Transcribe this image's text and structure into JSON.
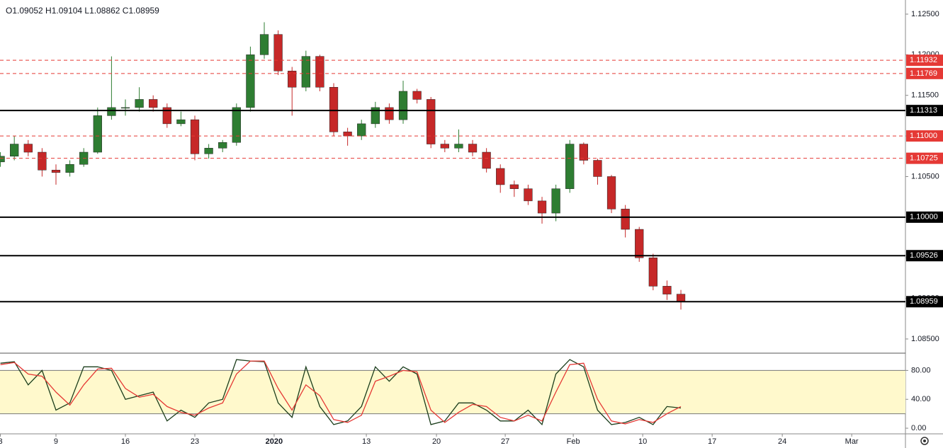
{
  "chart_data": [
    {
      "type": "candlestick",
      "header": "O1.09052  H1.09104  L1.08862  C1.08959",
      "x": [
        1,
        2,
        3,
        4,
        5,
        6,
        7,
        8,
        9,
        10,
        11,
        12,
        13,
        14,
        15,
        16,
        17,
        18,
        19,
        20,
        21,
        22,
        23,
        24,
        25,
        26,
        27,
        28,
        29,
        30,
        31,
        32,
        33,
        34,
        35,
        36,
        37,
        38,
        39,
        40,
        41,
        42,
        43,
        44,
        45,
        46,
        47,
        48,
        49,
        50
      ],
      "open": [
        1.1068,
        1.1075,
        1.109,
        1.108,
        1.1058,
        1.1055,
        1.1065,
        1.108,
        1.1125,
        1.1135,
        1.1135,
        1.1145,
        1.1135,
        1.1115,
        1.112,
        1.1078,
        1.1085,
        1.1092,
        1.1135,
        1.12,
        1.1225,
        1.118,
        1.116,
        1.1198,
        1.116,
        1.1105,
        1.11,
        1.1115,
        1.1135,
        1.112,
        1.1155,
        1.1145,
        1.109,
        1.1085,
        1.109,
        1.108,
        1.106,
        1.104,
        1.1035,
        1.102,
        1.1005,
        1.1035,
        1.109,
        1.107,
        1.105,
        1.101,
        1.0985,
        1.095,
        1.0915,
        1.09052
      ],
      "high": [
        1.108,
        1.11,
        1.1095,
        1.1085,
        1.1065,
        1.107,
        1.1085,
        1.1135,
        1.1198,
        1.1145,
        1.116,
        1.115,
        1.114,
        1.113,
        1.1125,
        1.109,
        1.1095,
        1.114,
        1.121,
        1.124,
        1.123,
        1.1185,
        1.1205,
        1.12,
        1.1165,
        1.111,
        1.112,
        1.1142,
        1.114,
        1.1168,
        1.1158,
        1.1148,
        1.1095,
        1.1108,
        1.1095,
        1.1085,
        1.1065,
        1.1045,
        1.104,
        1.1025,
        1.104,
        1.1095,
        1.1092,
        1.1072,
        1.1052,
        1.1015,
        1.0988,
        1.0955,
        1.0922,
        1.09104
      ],
      "low": [
        1.1062,
        1.107,
        1.1075,
        1.105,
        1.104,
        1.105,
        1.1062,
        1.1078,
        1.112,
        1.1125,
        1.113,
        1.113,
        1.111,
        1.1112,
        1.107,
        1.1072,
        1.108,
        1.1088,
        1.113,
        1.1195,
        1.1175,
        1.1125,
        1.1155,
        1.1155,
        1.11,
        1.1088,
        1.1095,
        1.111,
        1.1115,
        1.1115,
        1.114,
        1.1085,
        1.108,
        1.108,
        1.1075,
        1.1055,
        1.103,
        1.1025,
        1.1015,
        1.0992,
        1.0995,
        1.103,
        1.1065,
        1.104,
        1.1005,
        1.0975,
        1.0945,
        1.091,
        1.0898,
        1.08862
      ],
      "close": [
        1.1075,
        1.109,
        1.108,
        1.1058,
        1.1055,
        1.1065,
        1.108,
        1.1125,
        1.1135,
        1.1135,
        1.1145,
        1.1135,
        1.1115,
        1.112,
        1.1078,
        1.1085,
        1.1092,
        1.1135,
        1.12,
        1.1225,
        1.118,
        1.116,
        1.1198,
        1.116,
        1.1105,
        1.11,
        1.1115,
        1.1135,
        1.112,
        1.1155,
        1.1145,
        1.109,
        1.1085,
        1.109,
        1.108,
        1.106,
        1.104,
        1.1035,
        1.102,
        1.1005,
        1.1035,
        1.109,
        1.107,
        1.105,
        1.101,
        1.0985,
        1.095,
        1.0915,
        1.09052,
        1.08959
      ],
      "up_color": "#2e7d32",
      "down_color": "#c62828",
      "xlim": [
        0.97,
        66.17
      ],
      "xticks": [
        {
          "value": 1,
          "label": "3"
        },
        {
          "value": 5,
          "label": "9"
        },
        {
          "value": 10,
          "label": "16"
        },
        {
          "value": 15,
          "label": "23"
        },
        {
          "value": 20.71,
          "label": "2020"
        },
        {
          "value": 27.35,
          "label": "13"
        },
        {
          "value": 32.4,
          "label": "20"
        },
        {
          "value": 37.35,
          "label": "27"
        },
        {
          "value": 42.25,
          "label": "Feb"
        },
        {
          "value": 47.25,
          "label": "10"
        },
        {
          "value": 52.25,
          "label": "17"
        },
        {
          "value": 57.3,
          "label": "24"
        },
        {
          "value": 62.3,
          "label": "Mar"
        }
      ],
      "ylim": [
        1.08334,
        1.12674
      ],
      "yticks": [
        {
          "value": 1.125,
          "label": "1.12500"
        },
        {
          "value": 1.12,
          "label": "1.12000"
        },
        {
          "value": 1.115,
          "label": "1.11500"
        },
        {
          "value": 1.11,
          "label": "1.11000"
        },
        {
          "value": 1.105,
          "label": "1.10500"
        },
        {
          "value": 1.1,
          "label": "1.10000"
        },
        {
          "value": 1.095,
          "label": "1.09500"
        },
        {
          "value": 1.09,
          "label": "1.09000"
        },
        {
          "value": 1.085,
          "label": "1.08500"
        }
      ],
      "levels": [
        {
          "value": 1.11932,
          "label": "1.11932",
          "style": "dashed",
          "color": "#e53935"
        },
        {
          "value": 1.11769,
          "label": "1.11769",
          "style": "dashed",
          "color": "#e53935"
        },
        {
          "value": 1.11313,
          "label": "1.11313",
          "style": "solid",
          "color": "#000000"
        },
        {
          "value": 1.11,
          "label": "1.11000",
          "style": "dashed",
          "color": "#e53935"
        },
        {
          "value": 1.10725,
          "label": "1.10725",
          "style": "dashed",
          "color": "#e53935"
        },
        {
          "value": 1.1,
          "label": "1.10000",
          "style": "solid",
          "color": "#000000"
        },
        {
          "value": 1.09526,
          "label": "1.09526",
          "style": "solid",
          "color": "#000000"
        },
        {
          "value": 1.08959,
          "label": "1.08959",
          "style": "solid",
          "color": "#000000"
        }
      ]
    },
    {
      "type": "line",
      "x": [
        1,
        2,
        3,
        4,
        5,
        6,
        7,
        8,
        9,
        10,
        11,
        12,
        13,
        14,
        15,
        16,
        17,
        18,
        19,
        20,
        21,
        22,
        23,
        24,
        25,
        26,
        27,
        28,
        29,
        30,
        31,
        32,
        33,
        34,
        35,
        36,
        37,
        38,
        39,
        40,
        41,
        42,
        43,
        44,
        45,
        46,
        47,
        48,
        49,
        50
      ],
      "series": [
        {
          "color": "#1b3d1b",
          "values": [
            90,
            92,
            60,
            80,
            25,
            35,
            85,
            85,
            80,
            40,
            45,
            50,
            10,
            25,
            15,
            35,
            40,
            95,
            93,
            92,
            35,
            15,
            85,
            30,
            5,
            10,
            30,
            85,
            65,
            85,
            75,
            5,
            10,
            35,
            35,
            25,
            10,
            10,
            25,
            5,
            75,
            95,
            85,
            25,
            5,
            8,
            15,
            5,
            30,
            28
          ]
        },
        {
          "color": "#e53935",
          "values": [
            88,
            91,
            75,
            72,
            50,
            32,
            60,
            82,
            83,
            55,
            43,
            47,
            30,
            22,
            18,
            28,
            35,
            75,
            93,
            93,
            55,
            25,
            60,
            45,
            12,
            8,
            18,
            65,
            72,
            80,
            78,
            25,
            8,
            22,
            33,
            30,
            15,
            10,
            18,
            10,
            50,
            88,
            90,
            40,
            10,
            6,
            12,
            8,
            20,
            30
          ]
        }
      ],
      "band": [
        20,
        80
      ],
      "band_color": "#fff9cc",
      "xlim": [
        0.97,
        66.17
      ],
      "ylim": [
        -7.8,
        103.9
      ],
      "yticks": [
        {
          "value": 80,
          "label": "80.00"
        },
        {
          "value": 40,
          "label": "40.00"
        },
        {
          "value": 0,
          "label": "0.00"
        }
      ]
    }
  ]
}
